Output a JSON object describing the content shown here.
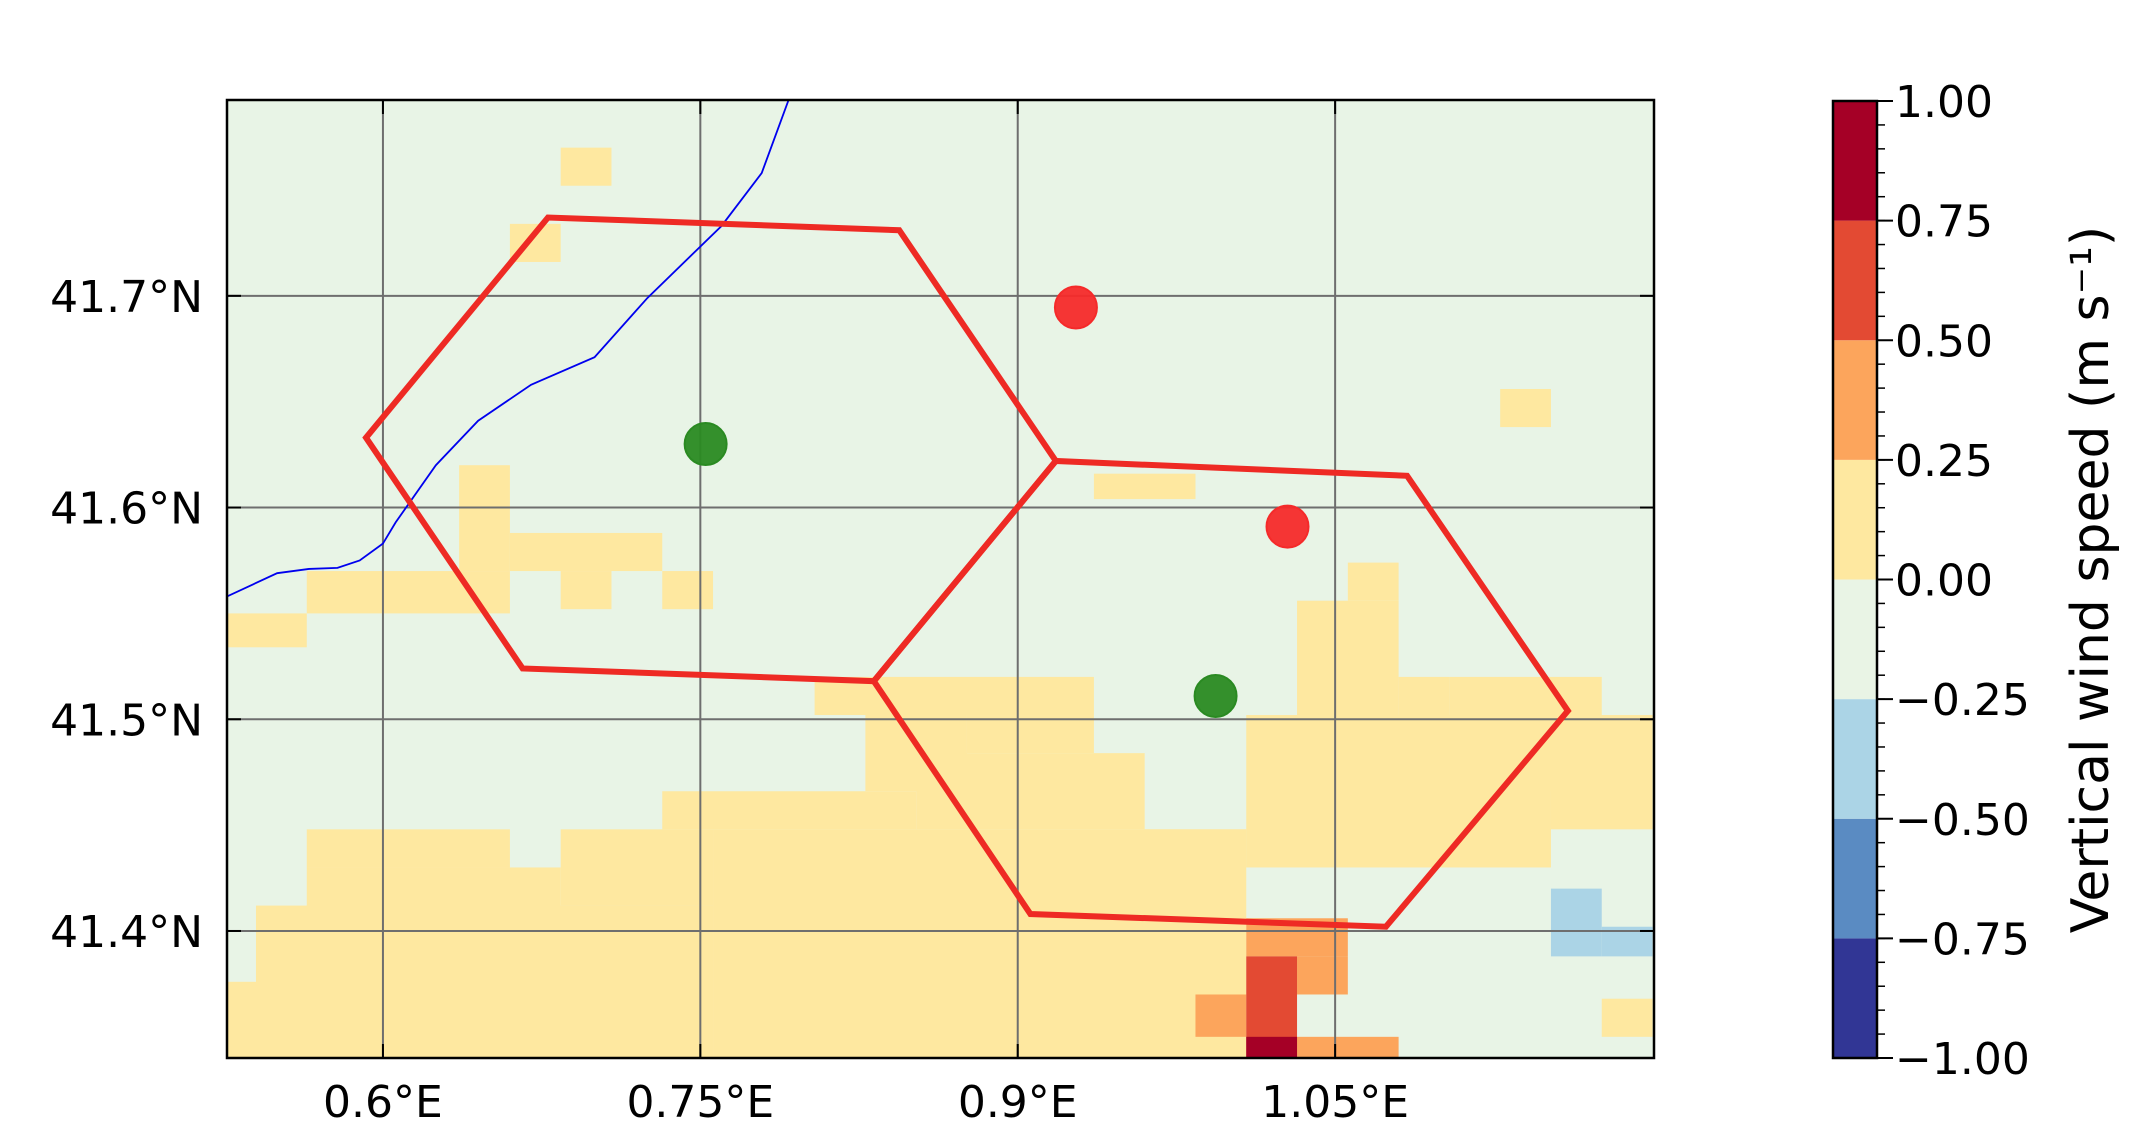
{
  "map": {
    "lon_range": [
      0.5263,
      1.2007
    ],
    "lat_range": [
      41.34,
      41.7925
    ],
    "x_ticks": [
      {
        "value": 0.6,
        "label": "0.6°E"
      },
      {
        "value": 0.75,
        "label": "0.75°E"
      },
      {
        "value": 0.9,
        "label": "0.9°E"
      },
      {
        "value": 1.05,
        "label": "1.05°E"
      }
    ],
    "y_ticks": [
      {
        "value": 41.4,
        "label": "41.4°N"
      },
      {
        "value": 41.5,
        "label": "41.5°N"
      },
      {
        "value": 41.6,
        "label": "41.6°N"
      },
      {
        "value": 41.7,
        "label": "41.7°N"
      }
    ],
    "gridlines": true,
    "grid_color": "#6e6e6e",
    "background_color": "#e8f4e6",
    "coastline": {
      "color": "#0000ee",
      "points": [
        [
          0.5263,
          41.558
        ],
        [
          0.55,
          41.569
        ],
        [
          0.565,
          41.571
        ],
        [
          0.5785,
          41.5715
        ],
        [
          0.589,
          41.575
        ],
        [
          0.6,
          41.583
        ],
        [
          0.606,
          41.593
        ],
        [
          0.625,
          41.62
        ],
        [
          0.645,
          41.641
        ],
        [
          0.67,
          41.658
        ],
        [
          0.7,
          41.671
        ],
        [
          0.725,
          41.699
        ],
        [
          0.76,
          41.733
        ],
        [
          0.779,
          41.758
        ],
        [
          0.7917,
          41.7925
        ]
      ]
    },
    "hexagons": {
      "color": "#ee2a24",
      "shapes": [
        [
          [
            0.592,
            41.633
          ],
          [
            0.678,
            41.737
          ],
          [
            0.844,
            41.731
          ],
          [
            0.918,
            41.622
          ],
          [
            0.832,
            41.518
          ],
          [
            0.666,
            41.524
          ]
        ],
        [
          [
            0.832,
            41.518
          ],
          [
            0.918,
            41.622
          ],
          [
            1.084,
            41.615
          ],
          [
            1.16,
            41.504
          ],
          [
            1.074,
            41.402
          ],
          [
            0.906,
            41.408
          ]
        ]
      ]
    },
    "points": [
      {
        "color": "red",
        "lon": 0.9275,
        "lat": 41.6945
      },
      {
        "color": "red",
        "lon": 1.0275,
        "lat": 41.591
      },
      {
        "color": "green",
        "lon": 0.7525,
        "lat": 41.63
      },
      {
        "color": "green",
        "lon": 0.9935,
        "lat": 41.511
      }
    ],
    "point_colors": {
      "red": "#f52a2a",
      "green": "#2a8a22"
    },
    "shading": {
      "cell_size_deg": [
        0.024,
        0.018
      ],
      "cells": [
        {
          "lon_range": [
            0.756,
            1.008
          ],
          "lat_range": [
            41.34,
            41.448
          ],
          "class": "w0_025"
        },
        {
          "lon_range": [
            0.54,
            0.66
          ],
          "lat_range": [
            41.34,
            41.412
          ],
          "class": "w0_025"
        },
        {
          "lon_range": [
            0.516,
            0.54
          ],
          "lat_range": [
            41.34,
            41.376
          ],
          "class": "w0_025"
        },
        {
          "lon_range": [
            0.54,
            0.564
          ],
          "lat_range": [
            41.34,
            41.394
          ],
          "class": "w0_025"
        },
        {
          "lon_range": [
            0.564,
            0.684
          ],
          "lat_range": [
            41.34,
            41.43
          ],
          "class": "w0_025"
        },
        {
          "lon_range": [
            0.66,
            0.756
          ],
          "lat_range": [
            41.34,
            41.412
          ],
          "class": "w0_025"
        },
        {
          "lon_range": [
            0.684,
            0.756
          ],
          "lat_range": [
            41.412,
            41.448
          ],
          "class": "w0_025"
        },
        {
          "lon_range": [
            0.564,
            0.66
          ],
          "lat_range": [
            41.43,
            41.448
          ],
          "class": "w0_025"
        },
        {
          "lon_range": [
            0.732,
            0.852
          ],
          "lat_range": [
            41.448,
            41.466
          ],
          "class": "w0_025"
        },
        {
          "lon_range": [
            0.828,
            0.876
          ],
          "lat_range": [
            41.466,
            41.502
          ],
          "class": "w0_025"
        },
        {
          "lon_range": [
            0.804,
            0.936
          ],
          "lat_range": [
            41.502,
            41.52
          ],
          "class": "w0_025"
        },
        {
          "lon_range": [
            0.876,
            0.936
          ],
          "lat_range": [
            41.484,
            41.502
          ],
          "class": "w0_025"
        },
        {
          "lon_range": [
            0.852,
            0.96
          ],
          "lat_range": [
            41.448,
            41.484
          ],
          "class": "w0_025"
        },
        {
          "lon_range": [
            0.96,
            1.008
          ],
          "lat_range": [
            41.43,
            41.448
          ],
          "class": "w0_025"
        },
        {
          "lon_range": [
            1.008,
            1.152
          ],
          "lat_range": [
            41.43,
            41.502
          ],
          "class": "w0_025"
        },
        {
          "lon_range": [
            1.032,
            1.08
          ],
          "lat_range": [
            41.502,
            41.556
          ],
          "class": "w0_025"
        },
        {
          "lon_range": [
            1.056,
            1.08
          ],
          "lat_range": [
            41.556,
            41.574
          ],
          "class": "w0_025"
        },
        {
          "lon_range": [
            1.08,
            1.104
          ],
          "lat_range": [
            41.502,
            41.52
          ],
          "class": "w0_025"
        },
        {
          "lon_range": [
            1.104,
            1.176
          ],
          "lat_range": [
            41.466,
            41.52
          ],
          "class": "w0_025"
        },
        {
          "lon_range": [
            1.152,
            1.2
          ],
          "lat_range": [
            41.448,
            41.502
          ],
          "class": "w0_025"
        },
        {
          "lon_range": [
            0.516,
            0.564
          ],
          "lat_range": [
            41.534,
            41.55
          ],
          "class": "w0_025"
        },
        {
          "lon_range": [
            0.564,
            0.66
          ],
          "lat_range": [
            41.55,
            41.57
          ],
          "class": "w0_025"
        },
        {
          "lon_range": [
            0.636,
            0.66
          ],
          "lat_range": [
            41.57,
            41.62
          ],
          "class": "w0_025"
        },
        {
          "lon_range": [
            0.66,
            0.732
          ],
          "lat_range": [
            41.57,
            41.588
          ],
          "class": "w0_025"
        },
        {
          "lon_range": [
            0.684,
            0.708
          ],
          "lat_range": [
            41.552,
            41.57
          ],
          "class": "w0_025"
        },
        {
          "lon_range": [
            0.732,
            0.756
          ],
          "lat_range": [
            41.552,
            41.57
          ],
          "class": "w0_025"
        },
        {
          "lon_range": [
            0.684,
            0.708
          ],
          "lat_range": [
            41.752,
            41.77
          ],
          "class": "w0_025"
        },
        {
          "lon_range": [
            0.66,
            0.684
          ],
          "lat_range": [
            41.716,
            41.734
          ],
          "class": "w0_025"
        },
        {
          "lon_range": [
            0.936,
            0.984
          ],
          "lat_range": [
            41.604,
            41.616
          ],
          "class": "w0_025"
        },
        {
          "lon_range": [
            1.128,
            1.152
          ],
          "lat_range": [
            41.638,
            41.656
          ],
          "class": "w0_025"
        },
        {
          "lon_range": [
            1.176,
            1.2
          ],
          "lat_range": [
            41.35,
            41.368
          ],
          "class": "w0_025"
        },
        {
          "lon_range": [
            1.008,
            1.056
          ],
          "lat_range": [
            41.388,
            41.406
          ],
          "class": "w0_025_050"
        },
        {
          "lon_range": [
            1.032,
            1.056
          ],
          "lat_range": [
            41.37,
            41.388
          ],
          "class": "w0_025_050"
        },
        {
          "lon_range": [
            0.984,
            1.008
          ],
          "lat_range": [
            41.35,
            41.37
          ],
          "class": "w0_025_050"
        },
        {
          "lon_range": [
            1.032,
            1.08
          ],
          "lat_range": [
            41.34,
            41.35
          ],
          "class": "w0_025_050"
        },
        {
          "lon_range": [
            1.008,
            1.032
          ],
          "lat_range": [
            41.34,
            41.388
          ],
          "class": "w0_050_075"
        },
        {
          "lon_range": [
            1.008,
            1.032
          ],
          "lat_range": [
            41.34,
            41.35
          ],
          "class": "w0_075_100"
        },
        {
          "lon_range": [
            1.152,
            1.176
          ],
          "lat_range": [
            41.388,
            41.42
          ],
          "class": "wneg_025_050"
        },
        {
          "lon_range": [
            1.176,
            1.2
          ],
          "lat_range": [
            41.388,
            41.402
          ],
          "class": "wneg_025_050"
        }
      ]
    }
  },
  "colorbar": {
    "label": "Vertical wind speed (m s⁻¹)",
    "levels": [
      {
        "from": -1.0,
        "to": -0.75,
        "color": "#313695"
      },
      {
        "from": -0.75,
        "to": -0.5,
        "color": "#5a8bc2"
      },
      {
        "from": -0.5,
        "to": -0.25,
        "color": "#abd4e6"
      },
      {
        "from": -0.25,
        "to": 0.0,
        "color": "#e9f4e5"
      },
      {
        "from": 0.0,
        "to": 0.25,
        "color": "#fee8a0"
      },
      {
        "from": 0.25,
        "to": 0.5,
        "color": "#fca55c"
      },
      {
        "from": 0.5,
        "to": 0.75,
        "color": "#e34a33"
      },
      {
        "from": 0.75,
        "to": 1.0,
        "color": "#a50026"
      }
    ],
    "tick_labels": [
      "−1.00",
      "−0.75",
      "−0.50",
      "−0.25",
      "0.00",
      "0.25",
      "0.50",
      "0.75",
      "1.00"
    ],
    "minor_tick_step": 0.05
  },
  "class_colors": {
    "w0_025": "#fee8a0",
    "w0_025_050": "#fca55c",
    "w0_050_075": "#e34a33",
    "w0_075_100": "#a50026",
    "wneg_025_050": "#abd4e6"
  }
}
